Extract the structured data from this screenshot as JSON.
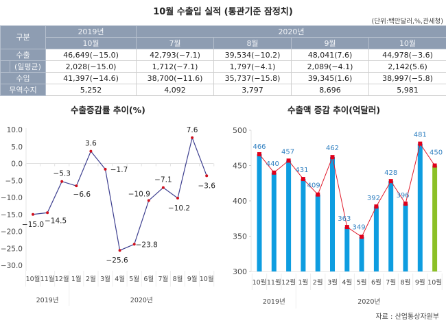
{
  "title": "10월 수출입 실적 (통관기준 잠정치)",
  "unit_note": "(단위:백만달러,%,관세청)",
  "table": {
    "corner_label": "구분",
    "year_headers": [
      {
        "label": "2019년"
      },
      {
        "label": "2020년"
      }
    ],
    "month_headers": [
      "10월",
      "7월",
      "8월",
      "9월",
      "10월"
    ],
    "rows": [
      {
        "label": "수출",
        "values": [
          "46,649(−15.0)",
          "42,793(−7.1)",
          "39,534(−10.2)",
          "48,041(7.6)",
          "44,978(−3.6)"
        ]
      },
      {
        "label": "(일평균)",
        "values": [
          "2,028(−15.0)",
          "1,712(−7.1)",
          "1,797(−4.1)",
          "2,089(−4.1)",
          "2,142(5.6)"
        ]
      },
      {
        "label": "수입",
        "values": [
          "41,397(−14.6)",
          "38,700(−11.6)",
          "35,737(−15.8)",
          "39,345(1.6)",
          "38,997(−5.8)"
        ]
      },
      {
        "label": "무역수지",
        "values": [
          "5,252",
          "4,092",
          "3,797",
          "8,696",
          "5,981"
        ]
      }
    ]
  },
  "colors": {
    "header_bg": "#8e9db2",
    "line_left": "#3d3f8f",
    "marker_left": "#d0101e",
    "bar": "#0e9de0",
    "bar_highlight": "#8cc027",
    "line_right": "#e01a2a",
    "marker_right": "#e0001b",
    "label_right": "#2f7fc0"
  },
  "chart_data": [
    {
      "type": "line",
      "title": "수출증감률 추이(%)",
      "categories": [
        "10월",
        "11월",
        "12월",
        "1월",
        "2월",
        "3월",
        "4월",
        "5월",
        "6월",
        "7월",
        "8월",
        "9월",
        "10월"
      ],
      "groups": [
        {
          "label": "2019년",
          "count": 3
        },
        {
          "label": "2020년",
          "count": 10
        }
      ],
      "values": [
        -15.0,
        -14.5,
        -5.3,
        -6.6,
        3.6,
        -1.7,
        -25.6,
        -23.8,
        -10.9,
        -7.1,
        -10.2,
        7.6,
        -3.6
      ],
      "labels": [
        "−15.0",
        "−14.5",
        "−5.3",
        "−6.6",
        "3.6",
        "−1.7",
        "−25.6",
        "−23.8",
        "−10.9",
        "−7.1",
        "−10.2",
        "7.6",
        "−3.6"
      ],
      "yticks": [
        "10.0",
        "5.0",
        "0.0",
        "−5.0",
        "−10.0",
        "−15.0",
        "−20.0",
        "−25.0",
        "−30.0"
      ],
      "ytick_values": [
        10,
        5,
        0,
        -5,
        -10,
        -15,
        -20,
        -25,
        -30
      ],
      "ylim": [
        -30,
        10
      ],
      "xlabel": "",
      "ylabel": ""
    },
    {
      "type": "bar",
      "title": "수출액 증감 추이(억달러)",
      "categories": [
        "10월",
        "11월",
        "12월",
        "1월",
        "2월",
        "3월",
        "4월",
        "5월",
        "6월",
        "7월",
        "8월",
        "9월",
        "10월"
      ],
      "groups": [
        {
          "label": "2019년",
          "count": 3
        },
        {
          "label": "2020년",
          "count": 10
        }
      ],
      "values": [
        466,
        440,
        457,
        431,
        409,
        462,
        363,
        349,
        392,
        428,
        396,
        481,
        450
      ],
      "highlight_index": 12,
      "overlay_line": true,
      "yticks": [
        "500",
        "450",
        "400",
        "350",
        "300"
      ],
      "ytick_values": [
        500,
        450,
        400,
        350,
        300
      ],
      "ylim": [
        300,
        500
      ],
      "xlabel": "",
      "ylabel": ""
    }
  ],
  "source": "자료 : 산업통상자원부"
}
